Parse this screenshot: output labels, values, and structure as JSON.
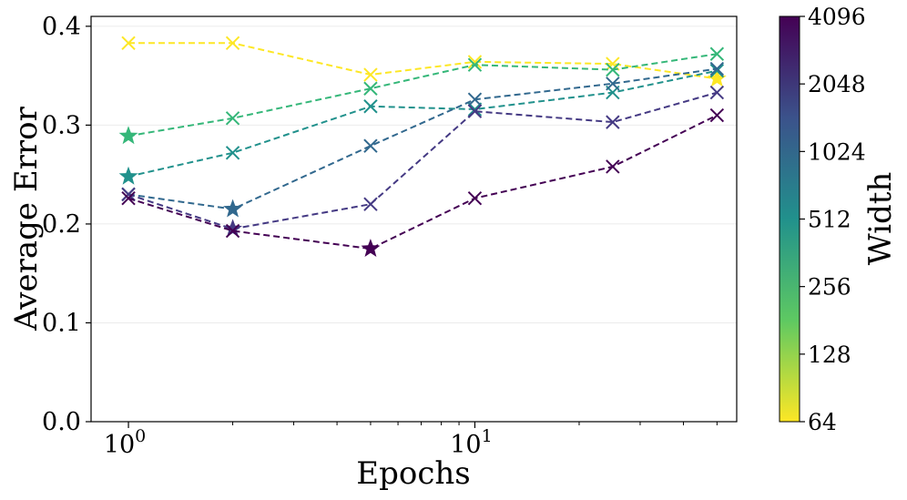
{
  "chart_data": {
    "type": "line",
    "title": "",
    "xlabel": "Epochs",
    "ylabel": "Average Error",
    "xscale": "log",
    "xlim": [
      0.78,
      57
    ],
    "ylim": [
      0.0,
      0.41
    ],
    "x_ticks": [
      {
        "value": 1,
        "base": "10",
        "exp": "0"
      },
      {
        "value": 10,
        "base": "10",
        "exp": "1"
      }
    ],
    "x_minor_ticks": [
      2,
      3,
      4,
      5,
      6,
      7,
      8,
      9,
      20,
      30,
      40,
      50
    ],
    "y_ticks": [
      {
        "value": 0.0,
        "label": "0.0"
      },
      {
        "value": 0.1,
        "label": "0.1"
      },
      {
        "value": 0.2,
        "label": "0.2"
      },
      {
        "value": 0.3,
        "label": "0.3"
      },
      {
        "value": 0.4,
        "label": "0.4"
      }
    ],
    "grid": true,
    "line_style": "dashed",
    "marker": "x",
    "best_marker": "star",
    "x": [
      1,
      2,
      5,
      10,
      25,
      50
    ],
    "series": [
      {
        "name": "64",
        "color": "#fde725",
        "values": [
          0.383,
          0.383,
          0.351,
          0.364,
          0.362,
          0.347
        ],
        "best_index": 5
      },
      {
        "name": "256",
        "color": "#35b779",
        "values": [
          0.289,
          0.307,
          0.337,
          0.361,
          0.356,
          0.372
        ],
        "best_index": 0
      },
      {
        "name": "512",
        "color": "#21918c",
        "values": [
          0.248,
          0.272,
          0.319,
          0.316,
          0.333,
          0.355
        ],
        "best_index": 0
      },
      {
        "name": "1024",
        "color": "#31688e",
        "values": [
          0.23,
          0.215,
          0.279,
          0.326,
          0.342,
          0.357
        ],
        "best_index": 1
      },
      {
        "name": "2048",
        "color": "#443983",
        "values": [
          0.23,
          0.195,
          0.22,
          0.314,
          0.303,
          0.333
        ],
        "best_index": 1
      },
      {
        "name": "4096",
        "color": "#440154",
        "values": [
          0.226,
          0.193,
          0.175,
          0.226,
          0.258,
          0.31
        ],
        "best_index": 2
      }
    ],
    "colorbar": {
      "label": "Width",
      "scale": "log2",
      "range": [
        64,
        4096
      ],
      "ticks": [
        "64",
        "128",
        "256",
        "512",
        "1024",
        "2048",
        "4096"
      ],
      "colors": [
        "#fde725",
        "#5ec962",
        "#21918c",
        "#3b528b",
        "#440154"
      ]
    }
  }
}
